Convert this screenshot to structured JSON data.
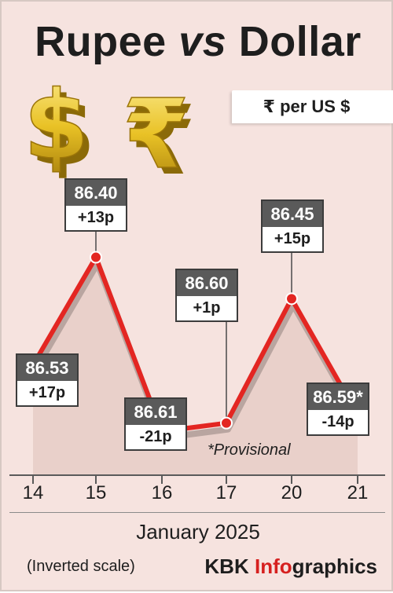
{
  "title_part1": "Rupee ",
  "title_part2": "vs",
  "title_part3": " Dollar",
  "unit_label": "₹ per US $",
  "provisional_note": "*Provisional",
  "month_label": "January 2025",
  "scale_note": "(Inverted scale)",
  "credit": {
    "brand": "KBK ",
    "accent": "Info",
    "rest": "graphics"
  },
  "icons": [
    "dollar-symbol-icon",
    "rupee-symbol-icon"
  ],
  "colors": {
    "line": "#e32622",
    "background": "#f6e3df",
    "accent": "#d6201f",
    "icon_gold": "#e9c226"
  },
  "chart_data": {
    "type": "line",
    "title": "Rupee vs Dollar",
    "unit": "₹ per US $",
    "xlabel": "January 2025",
    "ylabel": "",
    "y_inverted": true,
    "ylim": [
      86.66,
      86.3
    ],
    "categories": [
      "14",
      "15",
      "16",
      "17",
      "20",
      "21"
    ],
    "values": [
      86.53,
      86.4,
      86.61,
      86.6,
      86.45,
      86.59
    ],
    "value_labels": [
      "86.53",
      "86.40",
      "86.61",
      "86.60",
      "86.45",
      "86.59*"
    ],
    "changes": [
      "+17p",
      "+13p",
      "-21p",
      "+1p",
      "+15p",
      "-14p"
    ],
    "annotation": "*Provisional",
    "grid": false,
    "legend": "none"
  }
}
